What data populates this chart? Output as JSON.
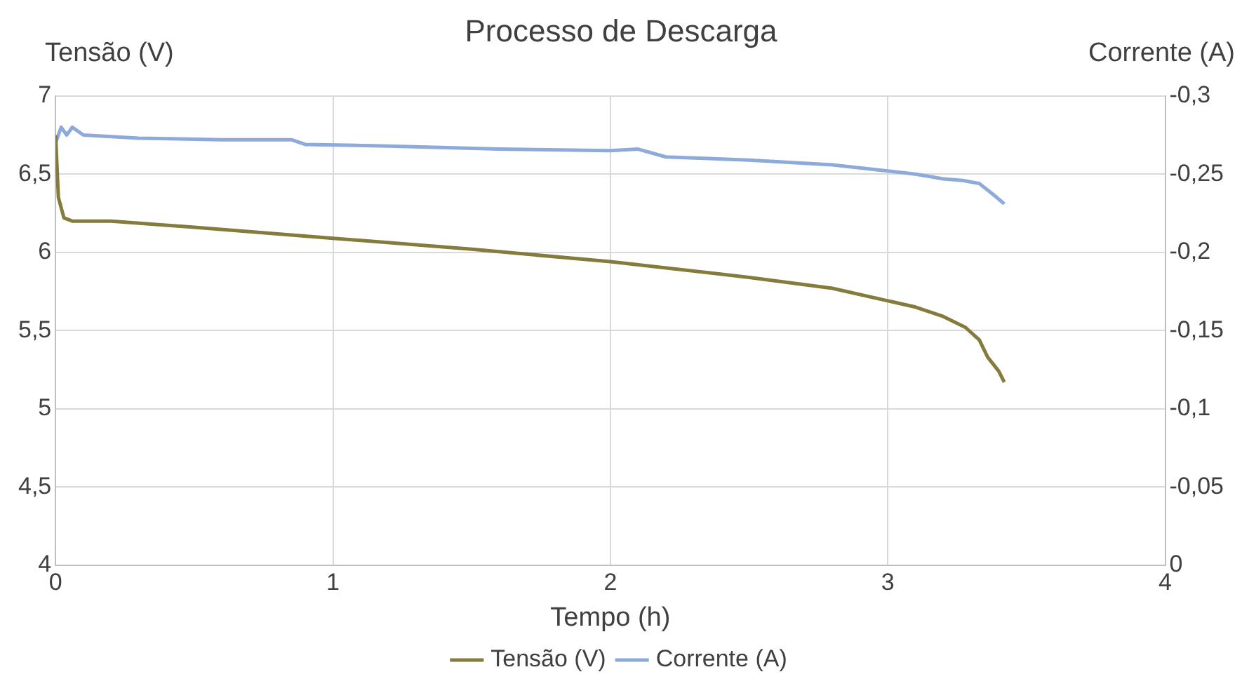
{
  "chart_data": {
    "type": "line",
    "title": "Processo de Descarga",
    "xlabel": "Tempo (h)",
    "ylabel": "Tensão (V)",
    "y2label": "Corrente (A)",
    "xlim": [
      0,
      4
    ],
    "xticks": [
      0,
      1,
      2,
      3,
      4
    ],
    "ylim": [
      4,
      7
    ],
    "yticks": [
      4,
      {
        "value": 4.5,
        "label": "4,5"
      },
      5,
      {
        "value": 5.5,
        "label": "5,5"
      },
      6,
      {
        "value": 6.5,
        "label": "6,5"
      },
      7
    ],
    "y2lim": [
      0,
      -0.3
    ],
    "y2ticks": [
      0,
      {
        "value": -0.05,
        "label": "-0,05"
      },
      {
        "value": -0.1,
        "label": "-0,1"
      },
      {
        "value": -0.15,
        "label": "-0,15"
      },
      {
        "value": -0.2,
        "label": "-0,2"
      },
      {
        "value": -0.25,
        "label": "-0,25"
      },
      {
        "value": -0.3,
        "label": "-0,3"
      }
    ],
    "grid": true,
    "legend": "bottom",
    "marker": "none",
    "line_style": "solid",
    "series": [
      {
        "name": "Tensão (V)",
        "color": "#857b3c",
        "x": [
          0,
          0.01,
          0.03,
          0.06,
          0.2,
          0.5,
          1,
          1.5,
          2,
          2.5,
          2.8,
          3,
          3.1,
          3.2,
          3.28,
          3.33,
          3.36,
          3.4,
          3.42
        ],
        "values": [
          6.75,
          6.35,
          6.22,
          6.2,
          6.2,
          6.16,
          6.09,
          6.02,
          5.94,
          5.84,
          5.77,
          5.69,
          5.65,
          5.59,
          5.52,
          5.44,
          5.33,
          5.24,
          5.17
        ]
      },
      {
        "name": "Corrente (A)",
        "color": "#8eaadb",
        "axis": "y2",
        "x": [
          0,
          0.02,
          0.04,
          0.06,
          0.1,
          0.3,
          0.6,
          0.85,
          0.9,
          1.2,
          1.6,
          2,
          2.1,
          2.2,
          2.5,
          2.8,
          3,
          3.1,
          3.2,
          3.27,
          3.33,
          3.38,
          3.42
        ],
        "values": [
          -0.27,
          -0.28,
          -0.275,
          -0.28,
          -0.275,
          -0.273,
          -0.272,
          -0.272,
          -0.269,
          -0.268,
          -0.266,
          -0.265,
          -0.266,
          -0.261,
          -0.259,
          -0.256,
          -0.252,
          -0.25,
          -0.247,
          -0.246,
          -0.244,
          -0.237,
          -0.231
        ]
      }
    ]
  }
}
